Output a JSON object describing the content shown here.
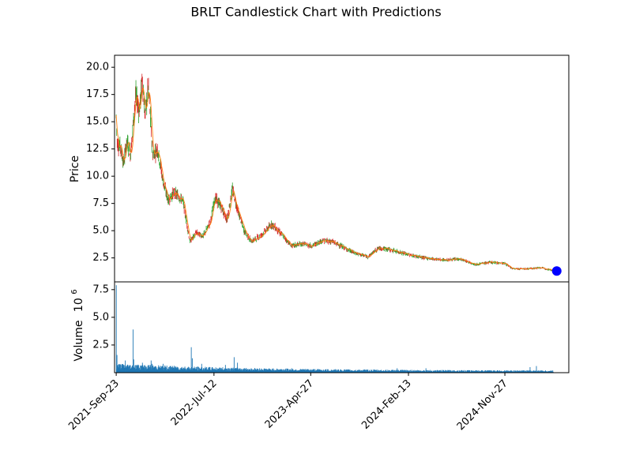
{
  "chart_data": {
    "type": "candlestick",
    "title": "BRLT Candlestick Chart with Predictions",
    "price_panel": {
      "ylabel": "Price",
      "ylim": [
        0.3,
        21.1
      ],
      "yticks": [
        "2.5",
        "5.0",
        "7.5",
        "10.0",
        "12.5",
        "15.0",
        "17.5",
        "20.0"
      ],
      "ytick_values": [
        2.5,
        5.0,
        7.5,
        10.0,
        12.5,
        15.0,
        17.5,
        20.0
      ],
      "anchors": [
        [
          "2021-09-23",
          15.5
        ],
        [
          "2021-09-26",
          13.0
        ],
        [
          "2021-10-05",
          12.8
        ],
        [
          "2021-10-15",
          11.2
        ],
        [
          "2021-10-25",
          13.2
        ],
        [
          "2021-11-05",
          12.0
        ],
        [
          "2021-11-20",
          17.5
        ],
        [
          "2021-12-01",
          16.0
        ],
        [
          "2021-12-10",
          19.0
        ],
        [
          "2021-12-18",
          15.5
        ],
        [
          "2021-12-28",
          18.3
        ],
        [
          "2022-01-10",
          12.0
        ],
        [
          "2022-01-25",
          12.5
        ],
        [
          "2022-02-10",
          9.5
        ],
        [
          "2022-02-25",
          7.8
        ],
        [
          "2022-03-15",
          8.5
        ],
        [
          "2022-04-10",
          7.8
        ],
        [
          "2022-05-01",
          4.0
        ],
        [
          "2022-05-20",
          4.8
        ],
        [
          "2022-06-10",
          4.5
        ],
        [
          "2022-07-01",
          5.8
        ],
        [
          "2022-07-15",
          8.0
        ],
        [
          "2022-08-01",
          7.3
        ],
        [
          "2022-08-20",
          6.0
        ],
        [
          "2022-09-05",
          8.8
        ],
        [
          "2022-09-20",
          7.0
        ],
        [
          "2022-10-10",
          5.0
        ],
        [
          "2022-11-01",
          4.0
        ],
        [
          "2022-12-01",
          4.6
        ],
        [
          "2023-01-01",
          5.6
        ],
        [
          "2023-02-01",
          4.6
        ],
        [
          "2023-03-01",
          3.6
        ],
        [
          "2023-04-01",
          3.8
        ],
        [
          "2023-05-01",
          3.6
        ],
        [
          "2023-06-01",
          4.1
        ],
        [
          "2023-07-01",
          4.0
        ],
        [
          "2023-08-01",
          3.5
        ],
        [
          "2023-09-01",
          3.0
        ],
        [
          "2023-10-15",
          2.6
        ],
        [
          "2023-11-15",
          3.4
        ],
        [
          "2023-12-15",
          3.3
        ],
        [
          "2024-02-13",
          2.8
        ],
        [
          "2024-04-01",
          2.5
        ],
        [
          "2024-06-01",
          2.3
        ],
        [
          "2024-07-15",
          2.4
        ],
        [
          "2024-09-01",
          1.9
        ],
        [
          "2024-10-15",
          2.1
        ],
        [
          "2024-11-27",
          2.0
        ],
        [
          "2024-12-20",
          1.5
        ],
        [
          "2025-02-01",
          1.5
        ],
        [
          "2025-03-15",
          1.6
        ],
        [
          "2025-04-20",
          1.35
        ]
      ],
      "prediction": {
        "date": "2025-05-01",
        "value": 1.3,
        "color": "#0000ff"
      },
      "colors": {
        "up": "#2ca02c",
        "down": "#d62728",
        "ma": "#ff7f0e",
        "wick": "#1f77b4"
      }
    },
    "volume_panel": {
      "ylabel": "Volume",
      "scale_label": "10",
      "scale_exponent": "6",
      "ylim": [
        0,
        8.2
      ],
      "yticks": [
        "2.5",
        "5.0",
        "7.5"
      ],
      "ytick_values": [
        2.5,
        5.0,
        7.5
      ],
      "color": "#1f77b4",
      "spikes": [
        [
          "2021-09-23",
          7.9
        ],
        [
          "2021-09-25",
          1.6
        ],
        [
          "2021-10-20",
          1.1
        ],
        [
          "2021-11-12",
          3.9
        ],
        [
          "2021-11-14",
          1.2
        ],
        [
          "2021-12-10",
          0.9
        ],
        [
          "2022-01-05",
          1.1
        ],
        [
          "2022-01-08",
          0.8
        ],
        [
          "2022-02-10",
          0.8
        ],
        [
          "2022-03-10",
          0.6
        ],
        [
          "2022-05-05",
          2.3
        ],
        [
          "2022-05-08",
          1.3
        ],
        [
          "2022-06-05",
          0.8
        ],
        [
          "2022-08-15",
          0.7
        ],
        [
          "2022-09-10",
          1.4
        ],
        [
          "2022-09-20",
          0.9
        ],
        [
          "2023-03-01",
          0.4
        ],
        [
          "2024-01-10",
          0.4
        ],
        [
          "2024-04-05",
          0.4
        ],
        [
          "2025-02-10",
          0.5
        ],
        [
          "2025-03-01",
          0.6
        ]
      ]
    },
    "x_axis": {
      "start": "2021-09-23",
      "end": "2025-05-01",
      "tick_labels": [
        "2021-Sep-23",
        "2022-Jul-12",
        "2023-Apr-27",
        "2024-Feb-13",
        "2024-Nov-27"
      ],
      "tick_dates": [
        "2021-09-23",
        "2022-07-12",
        "2023-04-27",
        "2024-02-13",
        "2024-11-27"
      ]
    }
  }
}
